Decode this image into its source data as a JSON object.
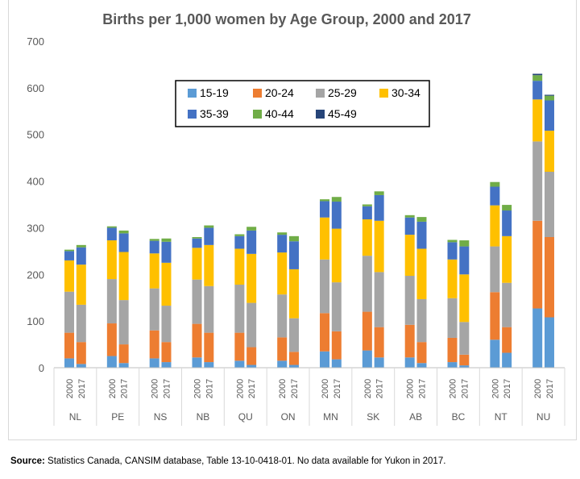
{
  "chart_data": {
    "type": "bar",
    "stacked": true,
    "title": "Births per 1,000 women by Age Group, 2000 and 2017",
    "ylim": [
      0,
      700
    ],
    "yticks": [
      0,
      100,
      200,
      300,
      400,
      500,
      600,
      700
    ],
    "grid": false,
    "legend_position": "top-center",
    "groups": [
      "NL",
      "PE",
      "NS",
      "NB",
      "QU",
      "ON",
      "MN",
      "SK",
      "AB",
      "BC",
      "NT",
      "NU"
    ],
    "years": [
      "2000",
      "2017"
    ],
    "series": [
      {
        "name": "15-19",
        "color": "#5b9bd5"
      },
      {
        "name": "20-24",
        "color": "#ed7d31"
      },
      {
        "name": "25-29",
        "color": "#a5a5a5"
      },
      {
        "name": "30-34",
        "color": "#ffc000"
      },
      {
        "name": "35-39",
        "color": "#4472c4"
      },
      {
        "name": "40-44",
        "color": "#70ad47"
      },
      {
        "name": "45-49",
        "color": "#264478"
      }
    ],
    "bars": [
      {
        "group": "NL",
        "year": "2000",
        "values": [
          20,
          55,
          88,
          67,
          20,
          3,
          0
        ]
      },
      {
        "group": "NL",
        "year": "2017",
        "values": [
          8,
          47,
          80,
          86,
          37,
          5,
          0
        ]
      },
      {
        "group": "PE",
        "year": "2000",
        "values": [
          25,
          70,
          95,
          83,
          27,
          3,
          0
        ]
      },
      {
        "group": "PE",
        "year": "2017",
        "values": [
          10,
          40,
          95,
          103,
          40,
          6,
          0
        ]
      },
      {
        "group": "NS",
        "year": "2000",
        "values": [
          20,
          60,
          90,
          75,
          27,
          4,
          0
        ]
      },
      {
        "group": "NS",
        "year": "2017",
        "values": [
          12,
          43,
          78,
          92,
          45,
          7,
          0
        ]
      },
      {
        "group": "NB",
        "year": "2000",
        "values": [
          22,
          72,
          95,
          68,
          20,
          3,
          0
        ]
      },
      {
        "group": "NB",
        "year": "2017",
        "values": [
          12,
          63,
          100,
          88,
          37,
          5,
          0
        ]
      },
      {
        "group": "QU",
        "year": "2000",
        "values": [
          15,
          60,
          103,
          77,
          27,
          4,
          0
        ]
      },
      {
        "group": "QU",
        "year": "2017",
        "values": [
          6,
          38,
          95,
          105,
          50,
          8,
          0
        ]
      },
      {
        "group": "ON",
        "year": "2000",
        "values": [
          15,
          50,
          92,
          90,
          38,
          5,
          0
        ]
      },
      {
        "group": "ON",
        "year": "2017",
        "values": [
          6,
          28,
          72,
          105,
          60,
          11,
          0
        ]
      },
      {
        "group": "MN",
        "year": "2000",
        "values": [
          35,
          82,
          115,
          90,
          35,
          4,
          0
        ]
      },
      {
        "group": "MN",
        "year": "2017",
        "values": [
          18,
          60,
          105,
          115,
          58,
          10,
          0
        ]
      },
      {
        "group": "SK",
        "year": "2000",
        "values": [
          37,
          83,
          120,
          78,
          28,
          4,
          0
        ]
      },
      {
        "group": "SK",
        "year": "2017",
        "values": [
          22,
          65,
          118,
          110,
          55,
          8,
          0
        ]
      },
      {
        "group": "AB",
        "year": "2000",
        "values": [
          22,
          70,
          105,
          88,
          37,
          5,
          0
        ]
      },
      {
        "group": "AB",
        "year": "2017",
        "values": [
          10,
          45,
          92,
          108,
          58,
          10,
          0
        ]
      },
      {
        "group": "BC",
        "year": "2000",
        "values": [
          12,
          52,
          85,
          83,
          37,
          5,
          0
        ]
      },
      {
        "group": "BC",
        "year": "2017",
        "values": [
          5,
          23,
          70,
          102,
          60,
          13,
          0
        ]
      },
      {
        "group": "NT",
        "year": "2000",
        "values": [
          60,
          102,
          98,
          88,
          40,
          10,
          0
        ]
      },
      {
        "group": "NT",
        "year": "2017",
        "values": [
          32,
          55,
          95,
          100,
          55,
          12,
          0
        ]
      },
      {
        "group": "NU",
        "year": "2000",
        "values": [
          127,
          188,
          170,
          90,
          40,
          12,
          3
        ]
      },
      {
        "group": "NU",
        "year": "2017",
        "values": [
          108,
          172,
          140,
          88,
          65,
          10,
          2
        ]
      }
    ]
  },
  "source": {
    "label": "Source:",
    "text": "Statistics Canada, CANSIM database, Table 13-10-0418-01. No data available for Yukon in 2017."
  }
}
